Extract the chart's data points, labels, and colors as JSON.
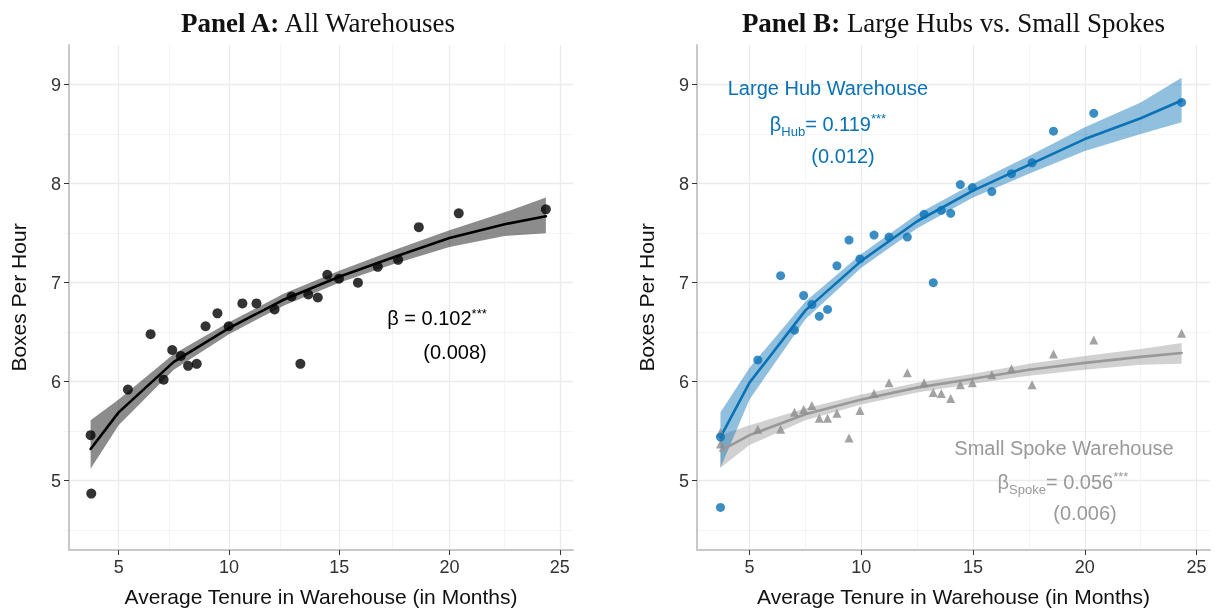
{
  "chart_data": [
    {
      "type": "scatter",
      "title": "Panel A: All Warehouses",
      "xlabel": "Average Tenure in Warehouse (in Months)",
      "ylabel": "Boxes Per Hour",
      "xlim": [
        2.75,
        25.6
      ],
      "xticks": [
        5,
        10,
        15,
        20,
        25
      ],
      "ylim": [
        4.3,
        9.4
      ],
      "yticks": [
        5,
        6,
        7,
        8,
        9
      ],
      "grid": true,
      "annotations": [
        "β = 0.102$^{***}$",
        "(0.008)"
      ],
      "series": [
        {
          "color": "#000000",
          "marker": "circle",
          "x": [
            3.73,
            3.76,
            5.42,
            6.45,
            7.04,
            7.43,
            7.82,
            8.15,
            8.54,
            8.94,
            9.48,
            9.99,
            10.61,
            11.25,
            12.07,
            12.84,
            13.24,
            13.6,
            14.03,
            14.46,
            14.99,
            15.85,
            16.75,
            17.67,
            18.61,
            20.42,
            24.37
          ],
          "values": [
            5.46,
            4.87,
            5.92,
            6.48,
            6.02,
            6.32,
            6.26,
            6.16,
            6.18,
            6.56,
            6.69,
            6.56,
            6.79,
            6.79,
            6.73,
            6.86,
            6.18,
            6.88,
            6.85,
            7.08,
            7.04,
            7.0,
            7.16,
            7.23,
            7.56,
            7.7,
            7.74
          ]
        },
        {
          "type": "line",
          "color": "#000000",
          "marker": "none",
          "line_style": "solid",
          "x": [
            3.73,
            5,
            7.5,
            10,
            12.5,
            15,
            17.5,
            20,
            22.5,
            24.37
          ],
          "values": [
            5.32,
            5.69,
            6.2,
            6.54,
            6.83,
            7.06,
            7.26,
            7.45,
            7.59,
            7.67
          ],
          "lower": [
            5.12,
            5.56,
            6.12,
            6.48,
            6.77,
            7.0,
            7.19,
            7.36,
            7.47,
            7.5
          ],
          "upper": [
            5.61,
            5.82,
            6.28,
            6.6,
            6.89,
            7.12,
            7.33,
            7.53,
            7.71,
            7.86
          ]
        }
      ]
    },
    {
      "type": "scatter",
      "title": "Panel B: Large Hubs vs. Small Spokes",
      "xlabel": "Average Tenure in Warehouse (in Months)",
      "ylabel": "Boxes Per Hour",
      "xlim": [
        2.65,
        25.6
      ],
      "xticks": [
        5,
        10,
        15,
        20,
        25
      ],
      "ylim": [
        4.3,
        9.4
      ],
      "yticks": [
        5,
        6,
        7,
        8,
        9
      ],
      "grid": true,
      "annotations": [
        "Large Hub Warehouse",
        "β$_{Hub}$= 0.119$^{***}$",
        "(0.012)",
        "Small Spoke Warehouse",
        "β$_{Spoke}$= 0.056$^{***}$",
        "(0.006)"
      ],
      "series": [
        {
          "type": "line",
          "color": "#999999",
          "marker": "none",
          "line_style": "solid",
          "x": [
            3.7,
            5,
            7.5,
            10,
            12.5,
            15,
            17.5,
            20,
            22.5,
            24.33
          ],
          "values": [
            5.3,
            5.46,
            5.67,
            5.82,
            5.94,
            6.03,
            6.12,
            6.19,
            6.25,
            6.29
          ],
          "lower": [
            5.13,
            5.36,
            5.61,
            5.77,
            5.89,
            5.98,
            6.06,
            6.12,
            6.17,
            6.18
          ],
          "upper": [
            5.46,
            5.56,
            5.73,
            5.87,
            5.99,
            6.08,
            6.18,
            6.26,
            6.33,
            6.39
          ]
        },
        {
          "color": "#8c8c8c",
          "marker": "triangle",
          "x": [
            3.7,
            3.7,
            5.37,
            6.39,
            7.01,
            7.42,
            7.79,
            8.12,
            8.49,
            8.91,
            9.45,
            9.94,
            10.57,
            11.24,
            12.06,
            12.81,
            13.22,
            13.58,
            14.0,
            14.43,
            14.97,
            15.84,
            16.72,
            17.64,
            18.6,
            20.4,
            24.33
          ],
          "values": [
            5.49,
            5.37,
            5.52,
            5.52,
            5.69,
            5.72,
            5.76,
            5.63,
            5.63,
            5.68,
            5.43,
            5.71,
            5.88,
            5.99,
            6.09,
            5.99,
            5.89,
            5.88,
            5.83,
            5.97,
            5.99,
            6.07,
            6.13,
            5.97,
            6.28,
            6.42,
            6.49
          ]
        },
        {
          "type": "line",
          "color": "#0a72b5",
          "marker": "none",
          "line_style": "solid",
          "x": [
            3.7,
            5,
            7.5,
            10,
            12.5,
            15,
            17.5,
            20,
            22.5,
            24.33
          ],
          "values": [
            5.44,
            5.99,
            6.72,
            7.22,
            7.62,
            7.93,
            8.19,
            8.45,
            8.66,
            8.84
          ],
          "lower": [
            5.13,
            5.82,
            6.63,
            7.15,
            7.55,
            7.86,
            8.1,
            8.33,
            8.5,
            8.62
          ],
          "upper": [
            5.69,
            6.14,
            6.81,
            7.29,
            7.69,
            8.0,
            8.28,
            8.57,
            8.82,
            9.07
          ]
        },
        {
          "color": "#0a72b5",
          "marker": "circle",
          "x": [
            3.7,
            3.7,
            5.37,
            6.39,
            7.01,
            7.42,
            7.79,
            8.12,
            8.49,
            8.91,
            9.45,
            9.94,
            10.57,
            11.24,
            12.06,
            12.81,
            13.22,
            13.58,
            14.0,
            14.43,
            14.97,
            15.84,
            16.72,
            17.64,
            18.6,
            20.4,
            24.33
          ],
          "values": [
            5.44,
            4.73,
            6.22,
            7.07,
            6.52,
            6.87,
            6.78,
            6.66,
            6.73,
            7.17,
            7.43,
            7.24,
            7.48,
            7.46,
            7.46,
            7.69,
            7.0,
            7.73,
            7.7,
            7.99,
            7.96,
            7.92,
            8.1,
            8.21,
            8.53,
            8.71,
            8.82
          ]
        }
      ]
    }
  ]
}
